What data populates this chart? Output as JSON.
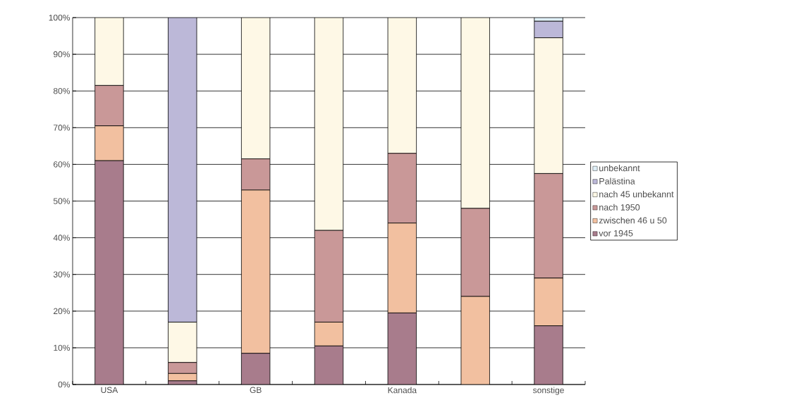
{
  "chart_data": {
    "type": "bar",
    "stacked": true,
    "categories": [
      "USA",
      null,
      "GB",
      null,
      "Kanada",
      null,
      "sonstige"
    ],
    "series": [
      {
        "name": "vor 1945",
        "color": "#a87c8c",
        "values": [
          61,
          1,
          8.5,
          10.5,
          19.5,
          null,
          16
        ]
      },
      {
        "name": "zwischen 46 u 50",
        "color": "#f2c0a0",
        "values": [
          9.5,
          2,
          44.5,
          6.5,
          24.5,
          24,
          13
        ]
      },
      {
        "name": "nach 1950",
        "color": "#c99898",
        "values": [
          11,
          3,
          8.5,
          25,
          19,
          24,
          28.5
        ]
      },
      {
        "name": "nach 45 unbekannt",
        "color": "#fef8e6",
        "values": [
          18.5,
          11,
          38.5,
          58,
          37,
          52,
          37
        ]
      },
      {
        "name": "Palästina",
        "color": "#bcb8d8",
        "values": [
          0,
          83,
          0,
          0,
          0,
          0,
          4.5
        ]
      },
      {
        "name": "unbekannt",
        "color": "#e0f0f8",
        "values": [
          0,
          0,
          0,
          0,
          0,
          0,
          1
        ]
      }
    ],
    "ylim": [
      0,
      100
    ],
    "yticks": [
      {
        "value": 0,
        "label": "0%"
      },
      {
        "value": 10,
        "label": "10%"
      },
      {
        "value": 20,
        "label": "20%"
      },
      {
        "value": 30,
        "label": "30%"
      },
      {
        "value": 40,
        "label": "40%"
      },
      {
        "value": 50,
        "label": "50%"
      },
      {
        "value": 60,
        "label": "60%"
      },
      {
        "value": 70,
        "label": "70%"
      },
      {
        "value": 80,
        "label": "80%"
      },
      {
        "value": 90,
        "label": "90%"
      },
      {
        "value": 100,
        "label": "100%"
      }
    ],
    "grid": "y",
    "legend": "right"
  }
}
